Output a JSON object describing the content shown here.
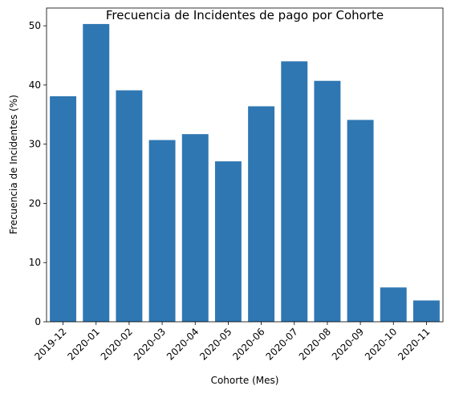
{
  "chart_data": {
    "type": "bar",
    "title": "Frecuencia de Incidentes de pago por Cohorte",
    "xlabel": "Cohorte (Mes)",
    "ylabel": "Frecuencia de Incidentes (%)",
    "categories": [
      "2019-12",
      "2020-01",
      "2020-02",
      "2020-03",
      "2020-04",
      "2020-05",
      "2020-06",
      "2020-07",
      "2020-08",
      "2020-09",
      "2020-10",
      "2020-11"
    ],
    "values": [
      38.1,
      50.3,
      39.1,
      30.7,
      31.7,
      27.1,
      36.4,
      44.0,
      40.7,
      34.1,
      5.8,
      3.6
    ],
    "ylim": [
      0,
      53
    ],
    "yticks": [
      0,
      10,
      20,
      30,
      40,
      50
    ],
    "bar_color": "#2f77b2",
    "grid": false,
    "legend": "none"
  }
}
